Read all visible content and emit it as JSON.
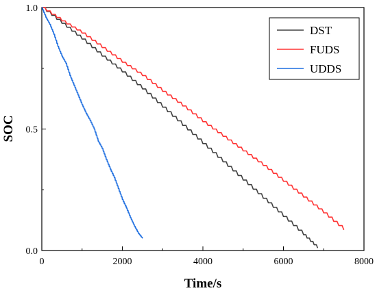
{
  "chart_data": {
    "type": "line",
    "title": "",
    "xlabel": "Time/s",
    "ylabel": "SOC",
    "xlim": [
      0,
      8000
    ],
    "ylim": [
      0,
      1.0
    ],
    "xticks": [
      0,
      2000,
      4000,
      6000,
      8000
    ],
    "xtick_labels": [
      "0",
      "2000",
      "4000",
      "6000",
      "8000"
    ],
    "yticks": [
      0,
      0.5,
      1.0
    ],
    "ytick_labels": [
      "0.0",
      "0.5",
      "1.0"
    ],
    "grid": false,
    "legend_position": "top-right",
    "series": [
      {
        "name": "DST",
        "color": "#404040",
        "x": [
          0,
          500,
          1000,
          1500,
          2000,
          2500,
          3000,
          3500,
          4000,
          4500,
          5000,
          5500,
          6000,
          6500,
          6850
        ],
        "y": [
          1.0,
          0.935,
          0.87,
          0.8,
          0.735,
          0.665,
          0.59,
          0.515,
          0.44,
          0.365,
          0.29,
          0.215,
          0.14,
          0.065,
          0.01
        ]
      },
      {
        "name": "FUDS",
        "color": "#ff3333",
        "x": [
          0,
          500,
          1000,
          1500,
          2000,
          2500,
          3000,
          3500,
          4000,
          4500,
          5000,
          5500,
          6000,
          6500,
          7000,
          7500
        ],
        "y": [
          1.0,
          0.945,
          0.895,
          0.835,
          0.775,
          0.72,
          0.655,
          0.595,
          0.53,
          0.47,
          0.41,
          0.35,
          0.285,
          0.22,
          0.155,
          0.085
        ]
      },
      {
        "name": "UDDS",
        "color": "#1f6fe0",
        "x": [
          0,
          100,
          200,
          300,
          400,
          500,
          600,
          700,
          800,
          900,
          1000,
          1100,
          1200,
          1300,
          1400,
          1500,
          1600,
          1700,
          1800,
          1900,
          2000,
          2100,
          2200,
          2300,
          2400,
          2500
        ],
        "y": [
          1.0,
          0.96,
          0.93,
          0.89,
          0.84,
          0.8,
          0.77,
          0.72,
          0.68,
          0.64,
          0.6,
          0.565,
          0.535,
          0.5,
          0.45,
          0.42,
          0.375,
          0.335,
          0.3,
          0.255,
          0.21,
          0.175,
          0.135,
          0.1,
          0.07,
          0.05
        ]
      }
    ]
  }
}
